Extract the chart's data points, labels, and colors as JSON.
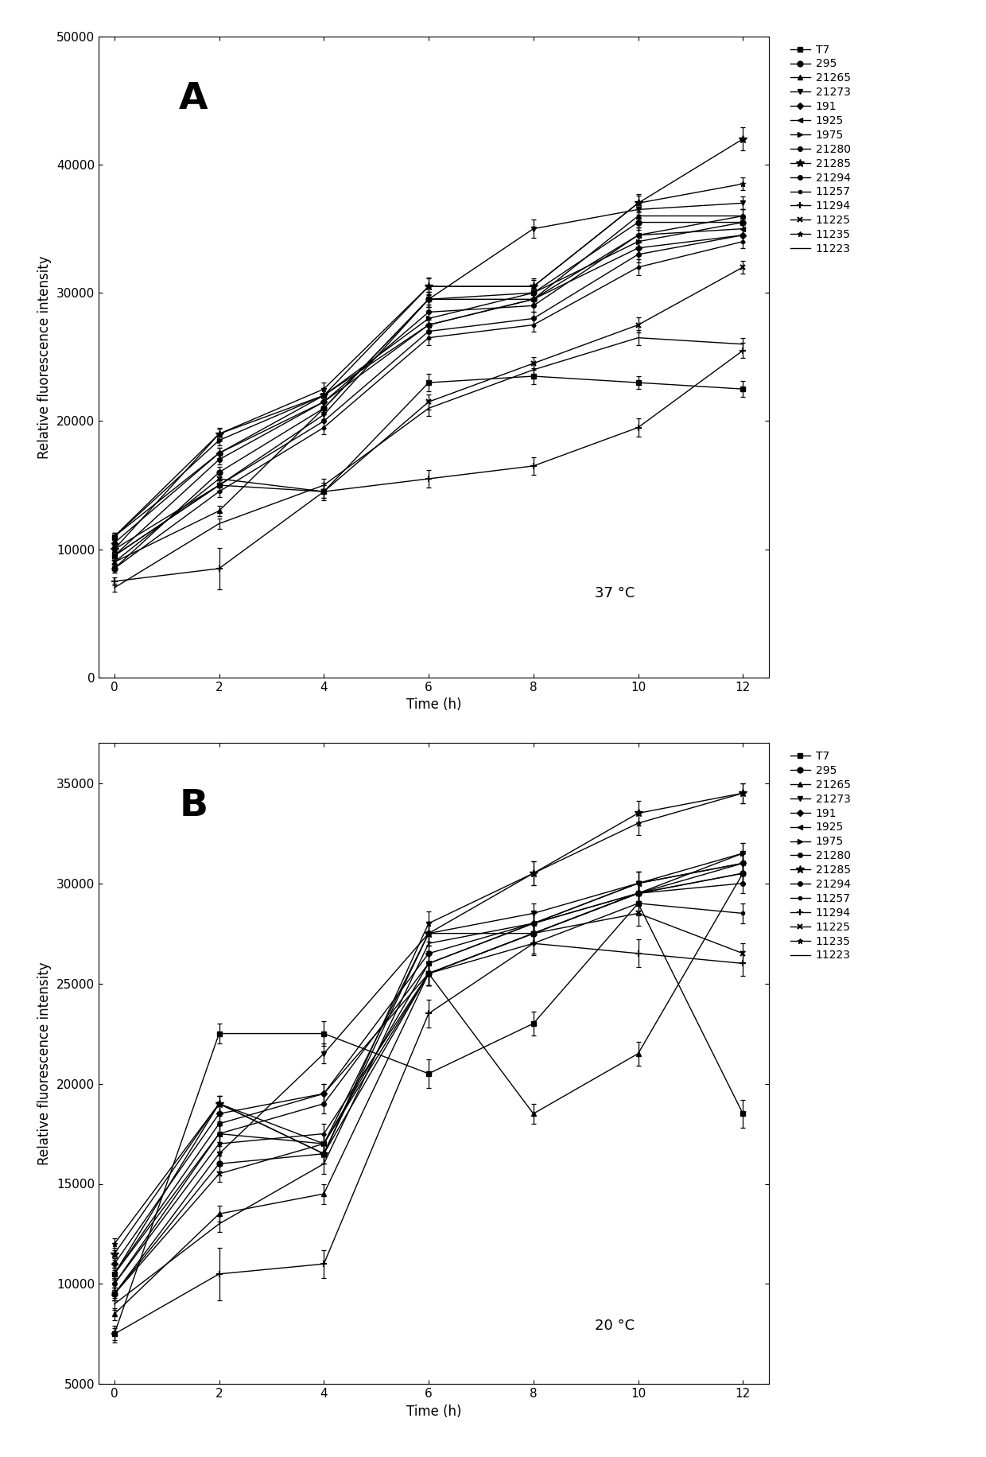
{
  "time_points": [
    0,
    2,
    4,
    6,
    8,
    10,
    12
  ],
  "panel_A_label": "A",
  "panel_B_label": "B",
  "temp_A": "37 °C",
  "temp_B": "20 °C",
  "ylabel": "Relative fluorescence intensity",
  "xlabel": "Time (h)",
  "ylim_A": [
    0,
    50000
  ],
  "ylim_B": [
    5000,
    37000
  ],
  "yticks_A": [
    0,
    10000,
    20000,
    30000,
    40000,
    50000
  ],
  "yticks_B": [
    5000,
    10000,
    15000,
    20000,
    25000,
    30000,
    35000
  ],
  "series": [
    {
      "name": "T7",
      "marker": "s",
      "ms": 5
    },
    {
      "name": "295",
      "marker": "o",
      "ms": 5
    },
    {
      "name": "21265",
      "marker": "^",
      "ms": 5
    },
    {
      "name": "21273",
      "marker": "v",
      "ms": 5
    },
    {
      "name": "191",
      "marker": "D",
      "ms": 4
    },
    {
      "name": "1925",
      "marker": "<",
      "ms": 5
    },
    {
      "name": "1975",
      "marker": ">",
      "ms": 5
    },
    {
      "name": "21280",
      "marker": "o",
      "ms": 4
    },
    {
      "name": "21285",
      "marker": "*",
      "ms": 7
    },
    {
      "name": "21294",
      "marker": "o",
      "ms": 4
    },
    {
      "name": "11257",
      "marker": "o",
      "ms": 3
    },
    {
      "name": "11294",
      "marker": "+",
      "ms": 6
    },
    {
      "name": "11225",
      "marker": "x",
      "ms": 5
    },
    {
      "name": "11235",
      "marker": "*",
      "ms": 5
    },
    {
      "name": "11223",
      "marker": "None",
      "ms": 5
    }
  ],
  "A_data": {
    "T7": {
      "y": [
        9500,
        15000,
        14500,
        23000,
        23500,
        23000,
        22500
      ],
      "yerr": [
        400,
        500,
        500,
        700,
        600,
        500,
        600
      ]
    },
    "295": {
      "y": [
        8500,
        16000,
        21000,
        29500,
        30000,
        35500,
        35500
      ],
      "yerr": [
        300,
        400,
        500,
        600,
        500,
        600,
        500
      ]
    },
    "21265": {
      "y": [
        9000,
        13000,
        21000,
        29500,
        29500,
        36000,
        36000
      ],
      "yerr": [
        300,
        400,
        500,
        600,
        500,
        600,
        500
      ]
    },
    "21273": {
      "y": [
        10000,
        15000,
        20500,
        29500,
        35000,
        36500,
        37000
      ],
      "yerr": [
        300,
        400,
        500,
        600,
        700,
        600,
        500
      ]
    },
    "191": {
      "y": [
        10500,
        17500,
        21500,
        27500,
        29500,
        33500,
        34500
      ],
      "yerr": [
        300,
        400,
        500,
        600,
        500,
        600,
        500
      ]
    },
    "1925": {
      "y": [
        11000,
        17500,
        22000,
        27500,
        29500,
        34500,
        35000
      ],
      "yerr": [
        300,
        400,
        500,
        600,
        500,
        600,
        500
      ]
    },
    "1975": {
      "y": [
        11000,
        18500,
        22000,
        28000,
        30000,
        34000,
        35500
      ],
      "yerr": [
        300,
        400,
        500,
        600,
        500,
        600,
        500
      ]
    },
    "21280": {
      "y": [
        9500,
        15000,
        20000,
        27000,
        28000,
        33000,
        34500
      ],
      "yerr": [
        300,
        400,
        500,
        600,
        500,
        600,
        500
      ]
    },
    "21285": {
      "y": [
        10000,
        19000,
        22000,
        30500,
        30500,
        37000,
        42000
      ],
      "yerr": [
        300,
        500,
        600,
        700,
        600,
        700,
        900
      ]
    },
    "21294": {
      "y": [
        9500,
        17000,
        21500,
        28500,
        29000,
        34500,
        36000
      ],
      "yerr": [
        300,
        400,
        500,
        600,
        500,
        600,
        500
      ]
    },
    "11257": {
      "y": [
        8500,
        14500,
        19500,
        26500,
        27500,
        32000,
        34000
      ],
      "yerr": [
        300,
        400,
        500,
        600,
        500,
        600,
        500
      ]
    },
    "11294": {
      "y": [
        7500,
        8500,
        14500,
        15500,
        16500,
        19500,
        25500
      ],
      "yerr": [
        300,
        1600,
        700,
        700,
        700,
        700,
        600
      ]
    },
    "11225": {
      "y": [
        9000,
        15500,
        14500,
        21500,
        24500,
        27500,
        32000
      ],
      "yerr": [
        300,
        400,
        500,
        600,
        500,
        600,
        500
      ]
    },
    "11235": {
      "y": [
        11000,
        19000,
        22500,
        30500,
        30500,
        37000,
        38500
      ],
      "yerr": [
        300,
        400,
        500,
        600,
        500,
        600,
        500
      ]
    },
    "11223": {
      "y": [
        7000,
        12000,
        15000,
        21000,
        24000,
        26500,
        26000
      ],
      "yerr": [
        300,
        400,
        500,
        600,
        500,
        600,
        500
      ]
    }
  },
  "B_data": {
    "T7": {
      "y": [
        7500,
        22500,
        22500,
        20500,
        23000,
        29000,
        18500
      ],
      "yerr": [
        400,
        500,
        600,
        700,
        600,
        500,
        700
      ]
    },
    "295": {
      "y": [
        9500,
        16000,
        16500,
        25500,
        27500,
        29500,
        30500
      ],
      "yerr": [
        300,
        400,
        500,
        600,
        500,
        600,
        500
      ]
    },
    "21265": {
      "y": [
        8500,
        13500,
        14500,
        25500,
        18500,
        21500,
        30500
      ],
      "yerr": [
        300,
        400,
        500,
        600,
        500,
        600,
        500
      ]
    },
    "21273": {
      "y": [
        9500,
        16500,
        21500,
        27500,
        28500,
        30000,
        31500
      ],
      "yerr": [
        300,
        400,
        500,
        600,
        500,
        600,
        500
      ]
    },
    "191": {
      "y": [
        11000,
        18500,
        19500,
        26500,
        28000,
        29500,
        31000
      ],
      "yerr": [
        300,
        400,
        500,
        600,
        500,
        600,
        500
      ]
    },
    "1925": {
      "y": [
        10500,
        17500,
        17000,
        26000,
        28000,
        30000,
        31000
      ],
      "yerr": [
        300,
        400,
        500,
        600,
        500,
        600,
        500
      ]
    },
    "1975": {
      "y": [
        10500,
        19000,
        17000,
        27500,
        27500,
        29500,
        31500
      ],
      "yerr": [
        300,
        400,
        500,
        600,
        500,
        600,
        500
      ]
    },
    "21280": {
      "y": [
        10000,
        17500,
        19000,
        26000,
        28000,
        29500,
        30000
      ],
      "yerr": [
        300,
        400,
        500,
        600,
        500,
        600,
        500
      ]
    },
    "21285": {
      "y": [
        11500,
        19000,
        16500,
        27500,
        30500,
        33500,
        34500
      ],
      "yerr": [
        300,
        400,
        500,
        600,
        600,
        600,
        500
      ]
    },
    "21294": {
      "y": [
        10500,
        18000,
        19500,
        25500,
        27500,
        29500,
        30500
      ],
      "yerr": [
        300,
        400,
        500,
        600,
        500,
        600,
        500
      ]
    },
    "11257": {
      "y": [
        10000,
        17000,
        17500,
        25500,
        27000,
        29000,
        28500
      ],
      "yerr": [
        300,
        400,
        500,
        600,
        500,
        600,
        500
      ]
    },
    "11294": {
      "y": [
        7500,
        10500,
        11000,
        23500,
        27000,
        26500,
        26000
      ],
      "yerr": [
        300,
        1300,
        700,
        700,
        600,
        700,
        600
      ]
    },
    "11225": {
      "y": [
        9500,
        15500,
        17000,
        25500,
        27500,
        28500,
        26500
      ],
      "yerr": [
        300,
        400,
        500,
        600,
        500,
        600,
        500
      ]
    },
    "11235": {
      "y": [
        12000,
        19000,
        16500,
        28000,
        30500,
        33000,
        34500
      ],
      "yerr": [
        300,
        400,
        500,
        600,
        600,
        600,
        500
      ]
    },
    "11223": {
      "y": [
        9000,
        13000,
        16000,
        27000,
        28000,
        30000,
        31000
      ],
      "yerr": [
        300,
        400,
        500,
        600,
        500,
        600,
        500
      ]
    }
  }
}
